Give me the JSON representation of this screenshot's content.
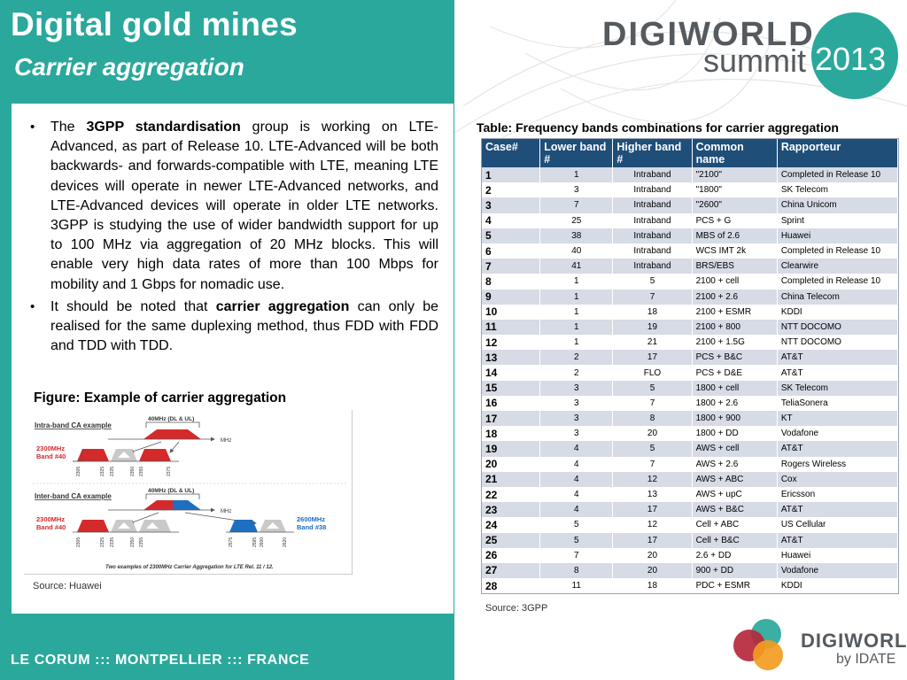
{
  "header": {
    "title": "Digital gold mines",
    "subtitle": "Carrier aggregation"
  },
  "logo_top": {
    "wordmark": "DIGIWORLD",
    "summit": "summit",
    "year": "2013",
    "color": "#555a5e",
    "circle_color": "#2aa89c"
  },
  "bullets": [
    {
      "pre": "The ",
      "bold": "3GPP standardisation",
      "post": " group is working on LTE-Advanced, as part of Release 10. LTE-Advanced will be both backwards- and forwards-compatible with LTE, meaning LTE devices will operate in newer LTE-Advanced networks, and LTE-Advanced devices will operate in older LTE networks. 3GPP is studying the use of wider bandwidth support for up to 100 MHz via aggregation of 20 MHz blocks. This will enable very high data rates of more than 100 Mbps for mobility and 1 Gbps for nomadic use."
    },
    {
      "pre": "It should be noted that ",
      "bold": "carrier aggregation",
      "post": " can only be realised for the same duplexing method, thus FDD with FDD and TDD with TDD."
    }
  ],
  "figure": {
    "caption": "Figure: Example of carrier aggregation",
    "source": "Source: Huawei",
    "intra_title": "Intra-band CA example",
    "inter_title": "Inter-band CA example",
    "bracket_label": "40MHz (DL & UL)",
    "axis_unit": "MHz",
    "band40_label_1": "2300MHz",
    "band40_label_2": "Band #40",
    "band38_label_1": "2600MHz",
    "band38_label_2": "Band #38",
    "intra_ticks": [
      "2305",
      "2325",
      "2335",
      "2350",
      "2355",
      "2375"
    ],
    "inter_ticks_left": [
      "2305",
      "2325",
      "2335",
      "2350",
      "2355"
    ],
    "inter_ticks_right": [
      "2575",
      "2595",
      "2600",
      "2620"
    ],
    "footnote": "Two examples of 2300MHz Carrier Aggregation for LTE Rel. 11 / 12.",
    "colors": {
      "red": "#d42a2a",
      "blue": "#1e6fc0",
      "gray": "#c9c9c9",
      "label_red": "#d42a2a",
      "label_blue": "#1e6fc0"
    }
  },
  "table": {
    "caption": "Table: Frequency bands combinations for carrier aggregation",
    "headers": [
      "Case#",
      "Lower band #",
      "Higher  band #",
      "Common name",
      "Rapporteur"
    ],
    "rows": [
      [
        "1",
        "1",
        "Intraband",
        "\"2100\"",
        "Completed  in Release  10"
      ],
      [
        "2",
        "3",
        "Intraband",
        "\"1800\"",
        "SK Telecom"
      ],
      [
        "3",
        "7",
        "Intraband",
        "\"2600\"",
        "China Unicom"
      ],
      [
        "4",
        "25",
        "Intraband",
        "PCS + G",
        "Sprint"
      ],
      [
        "5",
        "38",
        "Intraband",
        "MBS of 2.6",
        "Huawei"
      ],
      [
        "6",
        "40",
        "Intraband",
        "WCS IMT 2k",
        "Completed  in Release  10"
      ],
      [
        "7",
        "41",
        "Intraband",
        "BRS/EBS",
        "Clearwire"
      ],
      [
        "8",
        "1",
        "5",
        "2100 + cell",
        "Completed  in Release  10"
      ],
      [
        "9",
        "1",
        "7",
        "2100 + 2.6",
        "China Telecom"
      ],
      [
        "10",
        "1",
        "18",
        "2100 + ESMR",
        "KDDI"
      ],
      [
        "11",
        "1",
        "19",
        "2100 + 800",
        "NTT  DOCOMO"
      ],
      [
        "12",
        "1",
        "21",
        "2100 + 1.5G",
        "NTT  DOCOMO"
      ],
      [
        "13",
        "2",
        "17",
        "PCS + B&C",
        "AT&T"
      ],
      [
        "14",
        "2",
        "FLO",
        "PCS + D&E",
        "AT&T"
      ],
      [
        "15",
        "3",
        "5",
        "1800 + cell",
        "SK Telecom"
      ],
      [
        "16",
        "3",
        "7",
        "1800 + 2.6",
        "TeliaSonera"
      ],
      [
        "17",
        "3",
        "8",
        "1800 + 900",
        "KT"
      ],
      [
        "18",
        "3",
        "20",
        "1800 + DD",
        "Vodafone"
      ],
      [
        "19",
        "4",
        "5",
        "AWS + cell",
        "AT&T"
      ],
      [
        "20",
        "4",
        "7",
        "AWS + 2.6",
        "Rogers  Wireless"
      ],
      [
        "21",
        "4",
        "12",
        "AWS + ABC",
        "Cox"
      ],
      [
        "22",
        "4",
        "13",
        "AWS + upC",
        "Ericsson"
      ],
      [
        "23",
        "4",
        "17",
        "AWS + B&C",
        "AT&T"
      ],
      [
        "24",
        "5",
        "12",
        "Cell + ABC",
        "US Cellular"
      ],
      [
        "25",
        "5",
        "17",
        "Cell + B&C",
        "AT&T"
      ],
      [
        "26",
        "7",
        "20",
        "2.6 + DD",
        "Huawei"
      ],
      [
        "27",
        "8",
        "20",
        "900 + DD",
        "Vodafone"
      ],
      [
        "28",
        "11",
        "18",
        "PDC + ESMR",
        "KDDI"
      ]
    ],
    "source": "Source: 3GPP",
    "header_color": "#1f4e79",
    "stripe_color": "#d6dbe5"
  },
  "footer": {
    "text": "LE CORUM ::: MONTPELLIER ::: FRANCE"
  },
  "logo_bottom": {
    "wordmark": "DIGIWORLD",
    "by": "by IDATE",
    "colors": [
      "#2aa89c",
      "#b5283c",
      "#f39c1f"
    ]
  },
  "theme": {
    "teal": "#2aa89c"
  }
}
